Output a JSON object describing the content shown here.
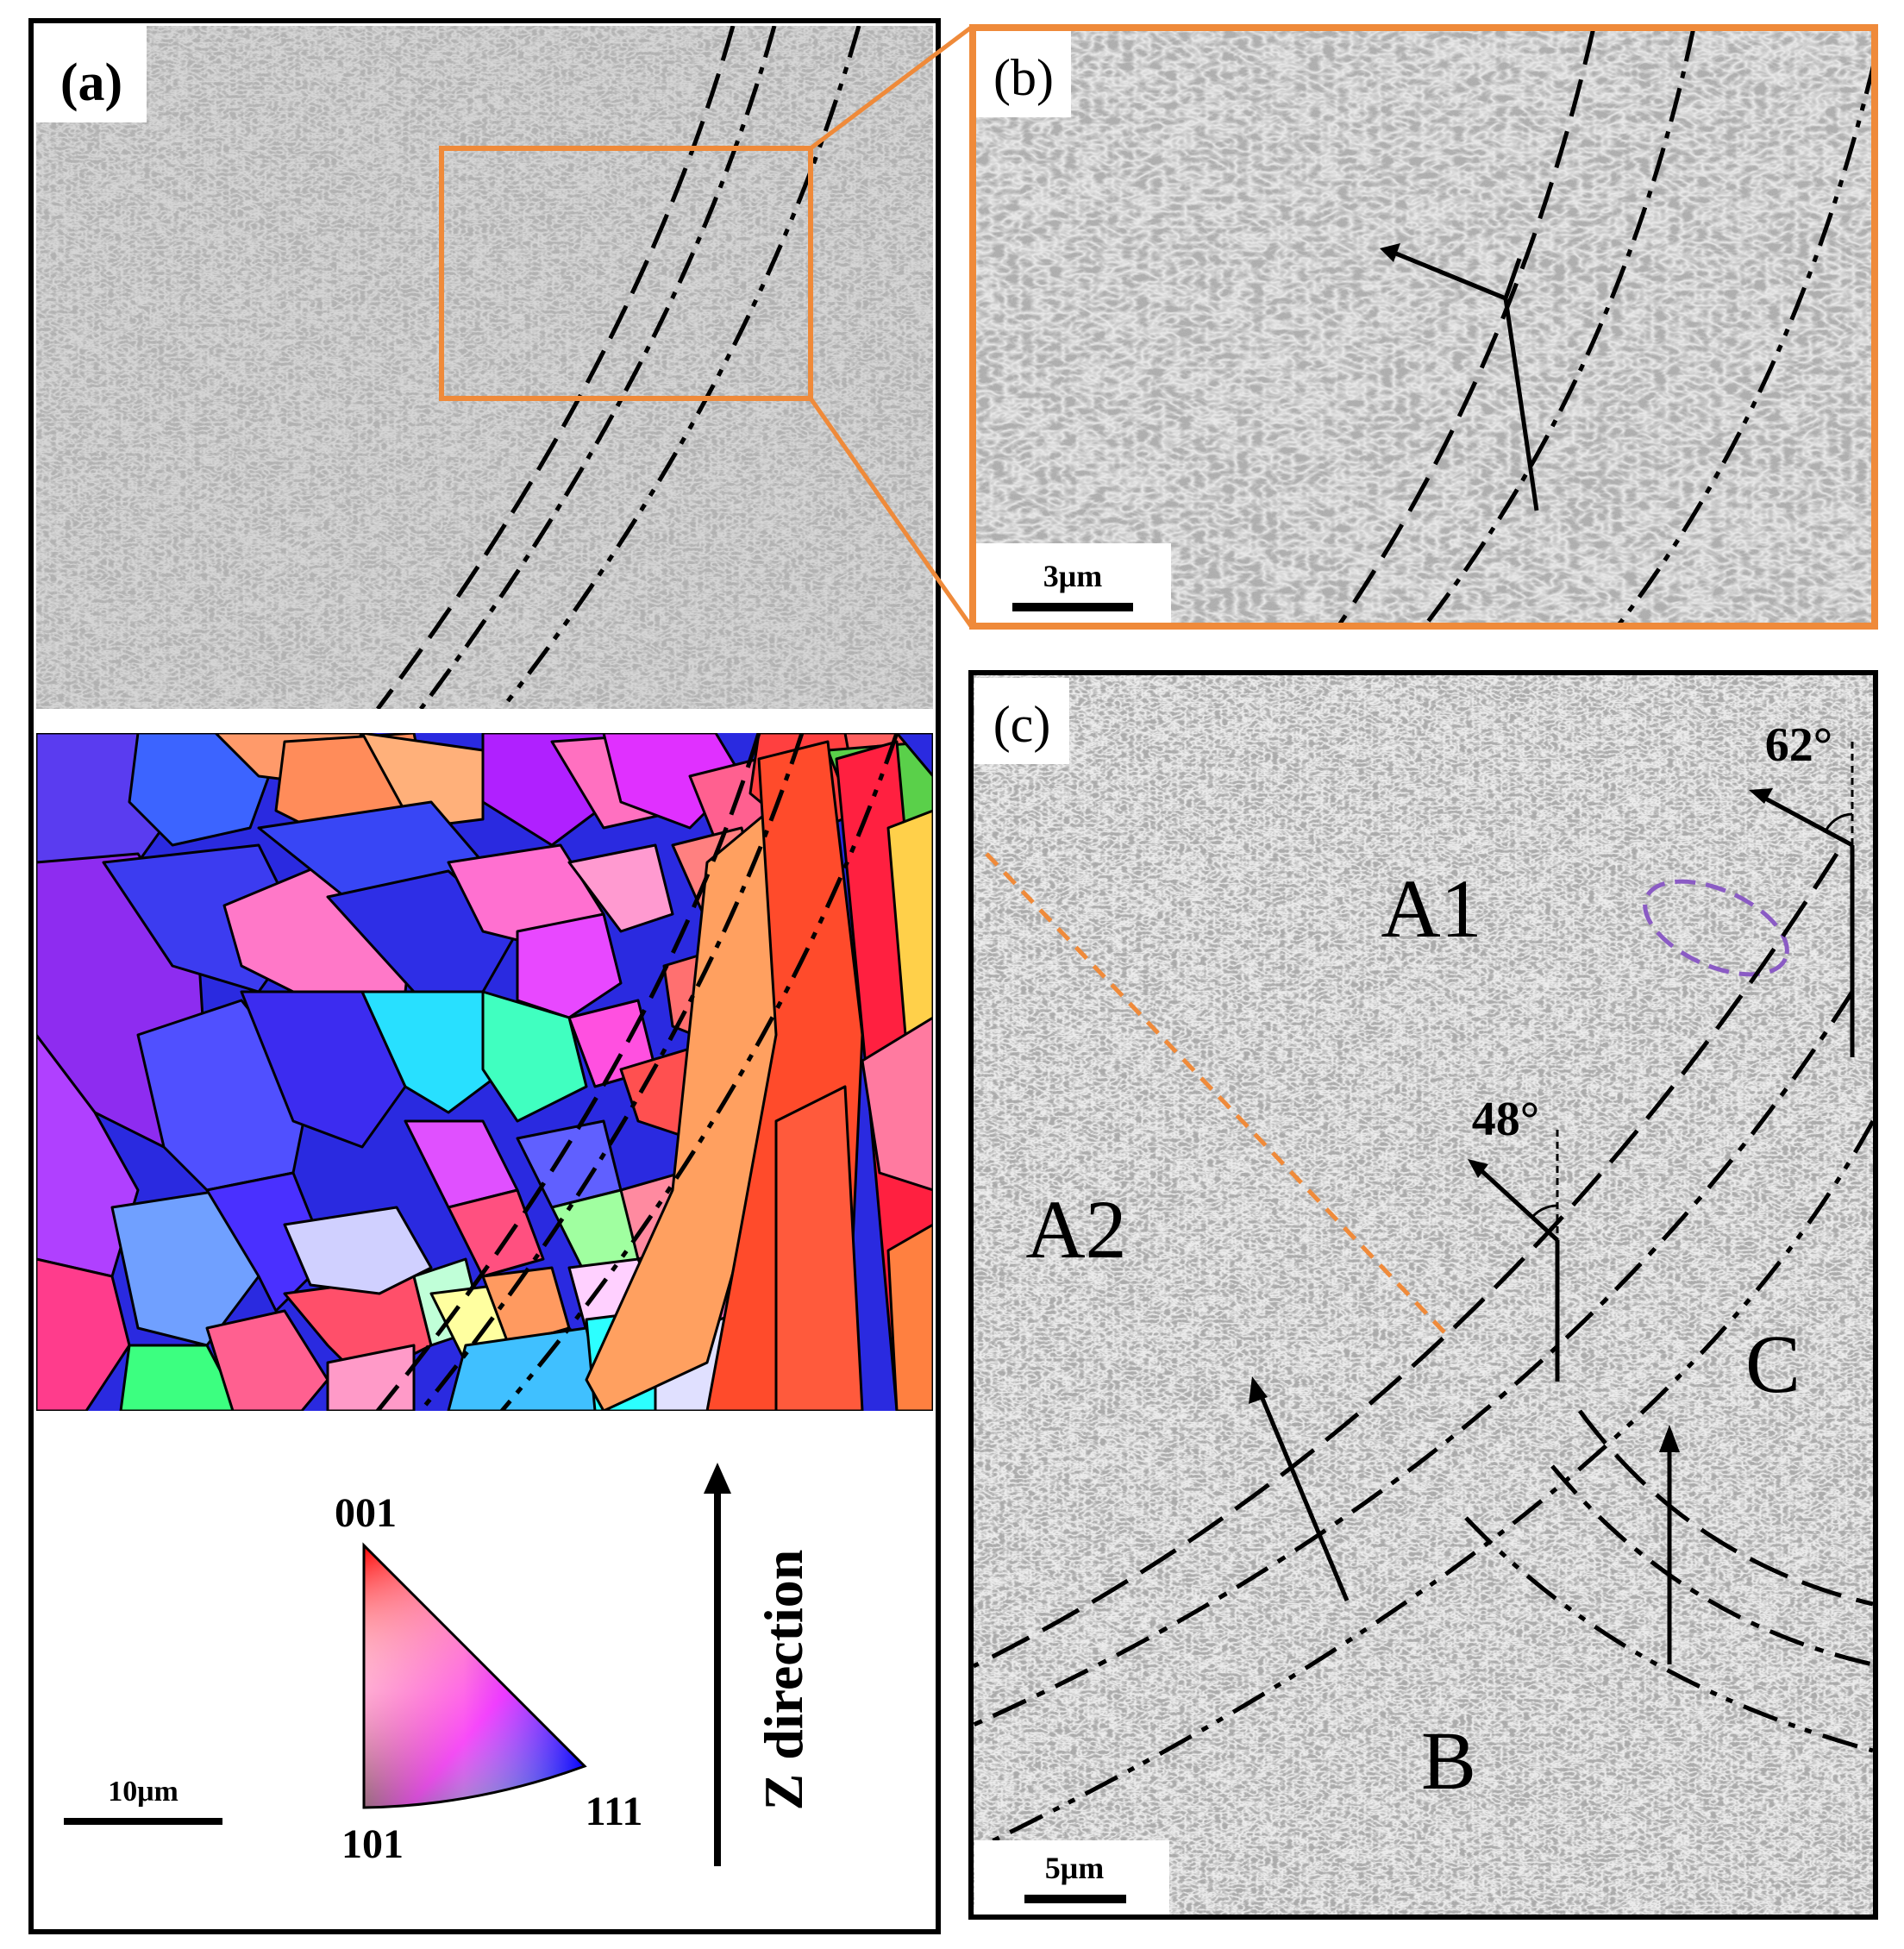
{
  "panels": {
    "a": {
      "label": "(a)",
      "scale_bar": "10μm",
      "ipf": {
        "top": "001",
        "left": "101",
        "right": "111"
      },
      "axis": "Z direction"
    },
    "b": {
      "label": "(b)",
      "scale_bar": "3μm"
    },
    "c": {
      "label": "(c)",
      "scale_bar": "5μm",
      "regions": {
        "a1": "A1",
        "a2": "A2",
        "b": "B",
        "c": "C"
      },
      "angles": {
        "upper": "62°",
        "middle": "48°"
      }
    }
  },
  "colors": {
    "frame": "#000000",
    "highlight": "#ef8a3a",
    "sem_gray": "#a9a9a9",
    "ellipse": "#8a5bc4"
  }
}
